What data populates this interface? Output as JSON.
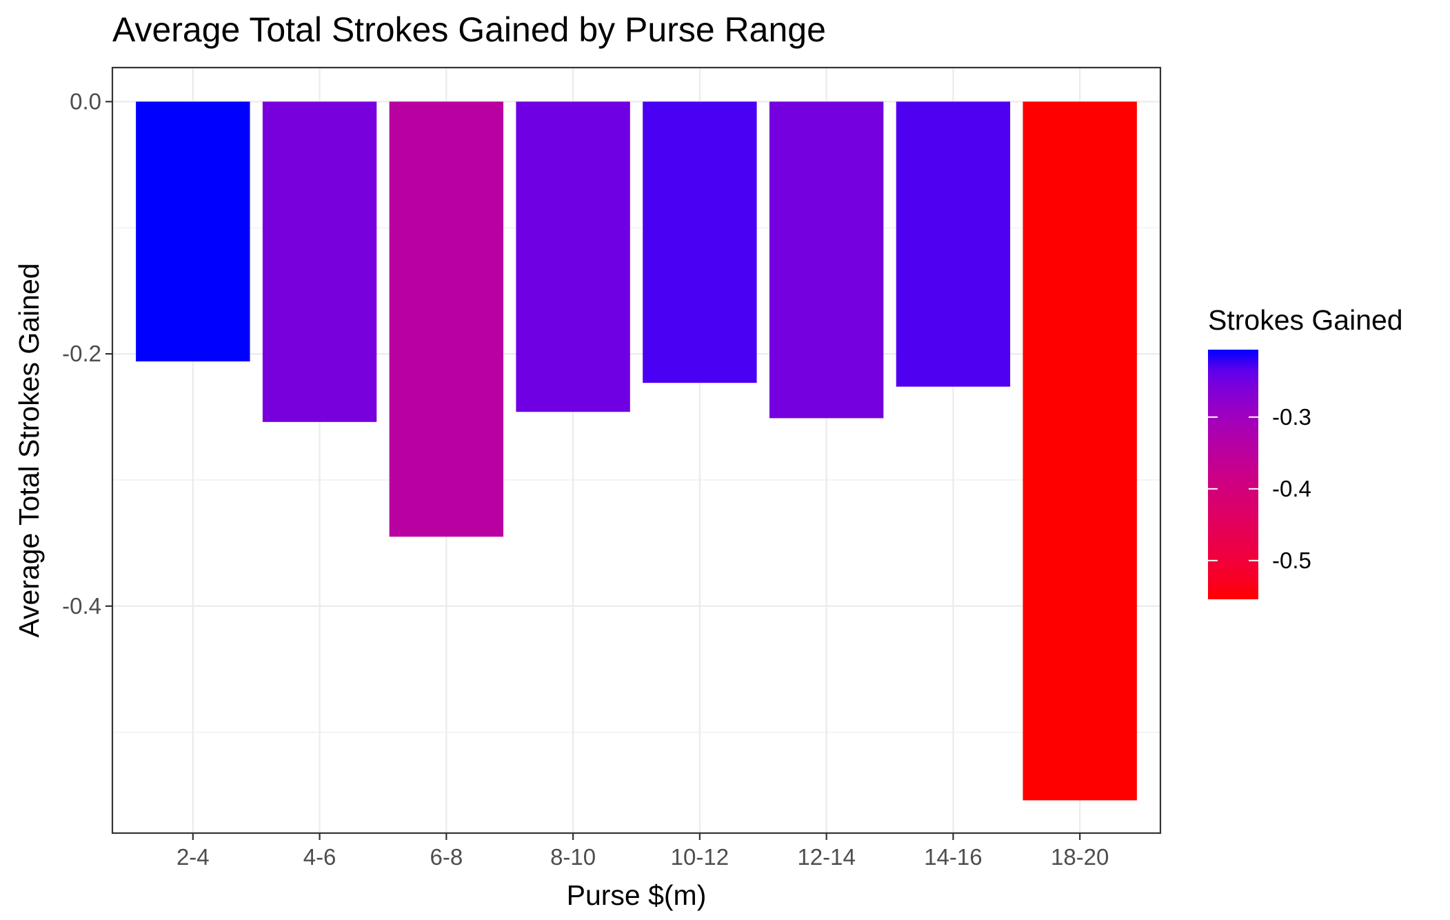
{
  "chart_data": {
    "type": "bar",
    "title": "Average Total Strokes Gained by Purse Range",
    "xlabel": "Purse $(m)",
    "ylabel": "Average Total Strokes Gained",
    "categories": [
      "2-4",
      "4-6",
      "6-8",
      "8-10",
      "10-12",
      "12-14",
      "14-16",
      "18-20"
    ],
    "values": [
      -0.206,
      -0.254,
      -0.345,
      -0.246,
      -0.223,
      -0.251,
      -0.226,
      -0.554
    ],
    "ylim": [
      -0.58,
      0.027
    ],
    "y_ticks": [
      0.0,
      -0.2,
      -0.4
    ],
    "y_tick_labels": [
      "0.0",
      "-0.2",
      "-0.4"
    ],
    "grid": true,
    "legend": {
      "title": "Strokes Gained",
      "placement": "right",
      "type": "colorbar",
      "range": [
        -0.554,
        -0.206
      ],
      "ticks": [
        -0.3,
        -0.4,
        -0.5
      ],
      "tick_labels": [
        "-0.3",
        "-0.4",
        "-0.5"
      ],
      "high_color": "#0000ff",
      "low_color": "#ff0000"
    }
  }
}
